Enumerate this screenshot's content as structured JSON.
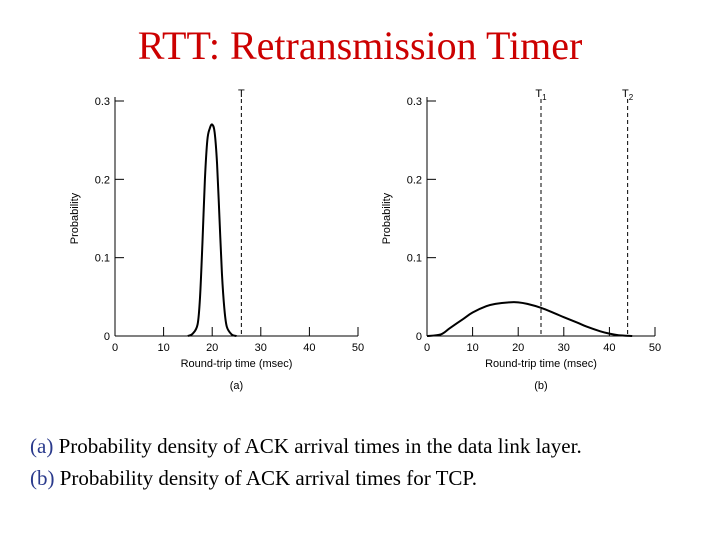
{
  "slide": {
    "title": "RTT: Retransmission Timer",
    "title_color": "#cc0000",
    "caption_lines": [
      {
        "tag": "(a)",
        "text": " Probability density of ACK arrival times in the data link layer."
      },
      {
        "tag": "(b)",
        "text": " Probability density of  ACK arrival times for TCP."
      }
    ],
    "caption_tag_color": "#2a3a8c"
  },
  "chart_data": [
    {
      "type": "line",
      "panel_label": "(a)",
      "xlabel": "Round-trip time (msec)",
      "ylabel": "Probability",
      "xlim": [
        0,
        50
      ],
      "ylim": [
        0,
        0.3
      ],
      "xticks": [
        0,
        10,
        20,
        30,
        40,
        50
      ],
      "yticks": [
        0,
        0.1,
        0.2,
        0.3
      ],
      "ytick_labels": [
        "0",
        "0.1",
        "0.2",
        "0.3"
      ],
      "grid": false,
      "series": [
        {
          "x": [
            15,
            16,
            17,
            17.5,
            18,
            18.5,
            19,
            19.5,
            20,
            20.5,
            21,
            21.5,
            22,
            22.5,
            23,
            24,
            25
          ],
          "y": [
            0,
            0.003,
            0.015,
            0.05,
            0.12,
            0.2,
            0.25,
            0.265,
            0.27,
            0.26,
            0.22,
            0.15,
            0.08,
            0.035,
            0.012,
            0.002,
            0
          ]
        }
      ],
      "vlines": [
        {
          "x": 26,
          "label": "T",
          "sub": ""
        }
      ]
    },
    {
      "type": "line",
      "panel_label": "(b)",
      "xlabel": "Round-trip time (msec)",
      "ylabel": "Probability",
      "xlim": [
        0,
        50
      ],
      "ylim": [
        0,
        0.3
      ],
      "xticks": [
        0,
        10,
        20,
        30,
        40,
        50
      ],
      "yticks": [
        0,
        0.1,
        0.2,
        0.3
      ],
      "ytick_labels": [
        "0",
        "0.1",
        "0.2",
        "0.3"
      ],
      "grid": false,
      "series": [
        {
          "x": [
            0,
            3,
            5,
            8,
            10,
            13,
            15,
            18,
            20,
            22,
            25,
            28,
            30,
            33,
            35,
            38,
            40,
            42,
            45
          ],
          "y": [
            0,
            0.002,
            0.01,
            0.022,
            0.03,
            0.038,
            0.041,
            0.043,
            0.043,
            0.041,
            0.036,
            0.029,
            0.024,
            0.017,
            0.012,
            0.006,
            0.003,
            0.001,
            0
          ]
        }
      ],
      "vlines": [
        {
          "x": 25,
          "label": "T",
          "sub": "1"
        },
        {
          "x": 44,
          "label": "T",
          "sub": "2"
        }
      ]
    }
  ]
}
